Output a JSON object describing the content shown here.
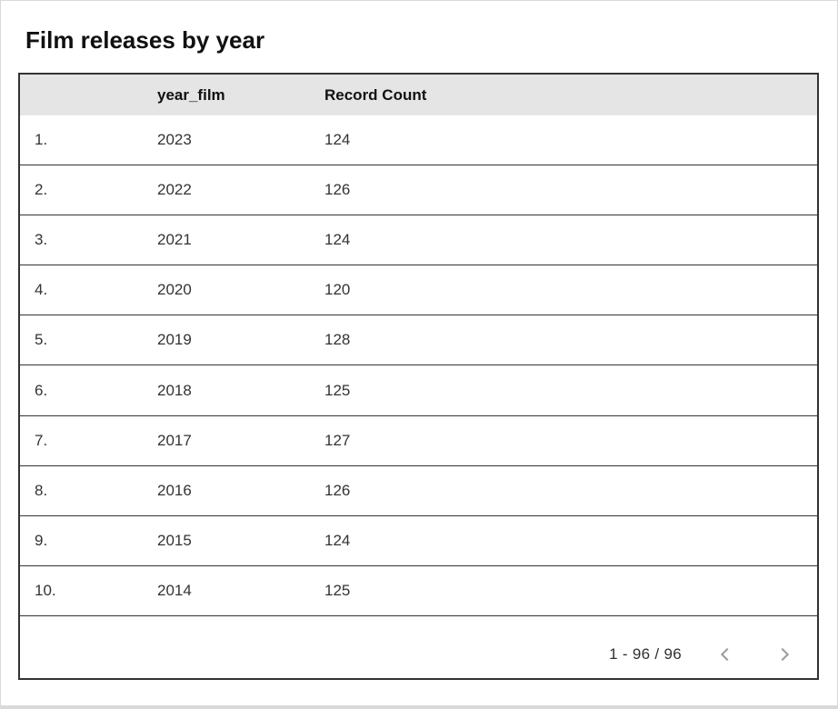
{
  "title": "Film releases by year",
  "table": {
    "columns": [
      {
        "label": "",
        "name": "row-number"
      },
      {
        "label": "year_film",
        "name": "year-film"
      },
      {
        "label": "Record Count",
        "name": "record-count"
      }
    ],
    "rows": [
      {
        "index": "1.",
        "year_film": "2023",
        "record_count": "124"
      },
      {
        "index": "2.",
        "year_film": "2022",
        "record_count": "126"
      },
      {
        "index": "3.",
        "year_film": "2021",
        "record_count": "124"
      },
      {
        "index": "4.",
        "year_film": "2020",
        "record_count": "120"
      },
      {
        "index": "5.",
        "year_film": "2019",
        "record_count": "128"
      },
      {
        "index": "6.",
        "year_film": "2018",
        "record_count": "125"
      },
      {
        "index": "7.",
        "year_film": "2017",
        "record_count": "127"
      },
      {
        "index": "8.",
        "year_film": "2016",
        "record_count": "126"
      },
      {
        "index": "9.",
        "year_film": "2015",
        "record_count": "124"
      },
      {
        "index": "10.",
        "year_film": "2014",
        "record_count": "125"
      }
    ]
  },
  "pagination": {
    "range_label": "1 - 96 / 96",
    "prev_icon": "chevron-left-icon",
    "next_icon": "chevron-right-icon"
  },
  "colors": {
    "header_bg": "#e5e5e5",
    "table_border": "#333333",
    "body_text": "#333333",
    "title_text": "#111111",
    "pager_icon": "#9e9e9e",
    "frame": "#d9d9d9"
  },
  "chart_data": {
    "type": "table",
    "title": "Film releases by year",
    "columns": [
      "year_film",
      "Record Count"
    ],
    "rows": [
      [
        2023,
        124
      ],
      [
        2022,
        126
      ],
      [
        2021,
        124
      ],
      [
        2020,
        120
      ],
      [
        2019,
        128
      ],
      [
        2018,
        125
      ],
      [
        2017,
        127
      ],
      [
        2016,
        126
      ],
      [
        2015,
        124
      ],
      [
        2014,
        125
      ]
    ],
    "visible_range": "1 - 96 / 96",
    "total_records": 96,
    "layout_hints": {
      "header_background": "#e5e5e5",
      "row_borders": true,
      "column_borders": false,
      "pagination": "bottom-right"
    }
  }
}
